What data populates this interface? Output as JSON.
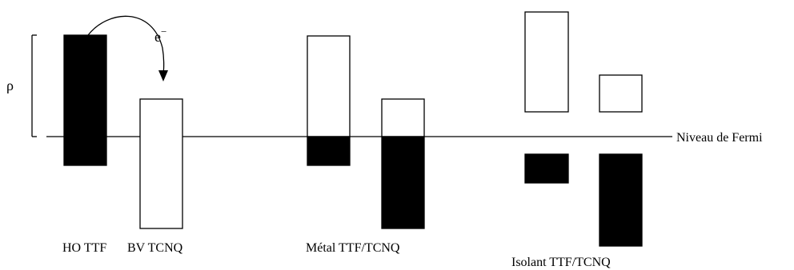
{
  "diagram": {
    "labels": {
      "rho": "ρ",
      "electron": "e",
      "electron_sup": "−",
      "fermi_level": "Niveau de Fermi",
      "ho_ttf": "HO TTF",
      "bv_tcnq": "BV TCNQ",
      "metal": "Métal TTF/TCNQ",
      "isolant": "Isolant TTF/TCNQ"
    },
    "colors": {
      "filled": "#000000",
      "empty": "#ffffff",
      "stroke": "#000000"
    }
  }
}
